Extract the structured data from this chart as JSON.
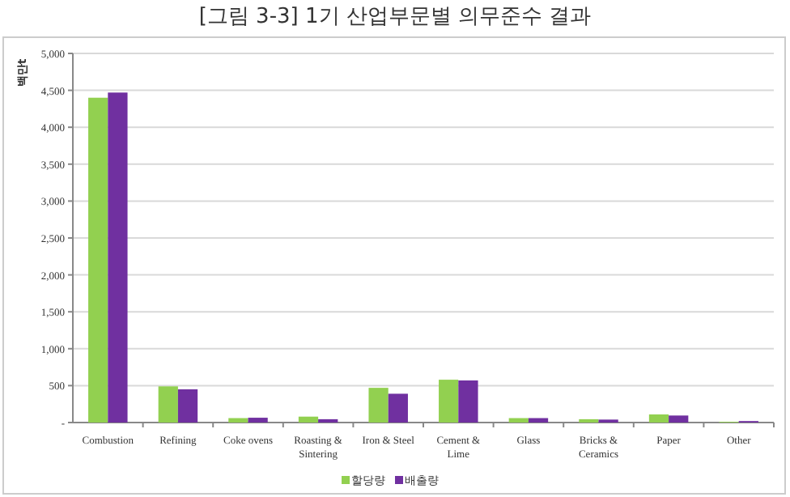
{
  "chart_data": {
    "type": "bar",
    "title": "[그림 3-3] 1기 산업부문별 의무준수 결과",
    "ylabel": "백만t",
    "categories": [
      "Combustion",
      "Refining",
      "Coke ovens",
      "Roasting & Sintering",
      "Iron & Steel",
      "Cement & Lime",
      "Glass",
      "Bricks & Ceramics",
      "Paper",
      "Other"
    ],
    "series": [
      {
        "name": "할당량",
        "color": "#92d050",
        "values": [
          4400,
          490,
          60,
          80,
          470,
          580,
          60,
          45,
          110,
          10
        ]
      },
      {
        "name": "배출량",
        "color": "#7030a0",
        "values": [
          4470,
          450,
          65,
          45,
          390,
          570,
          60,
          40,
          95,
          20
        ]
      }
    ],
    "ylim": [
      0,
      5000
    ],
    "yticks": [
      {
        "value": 0,
        "label": "-"
      },
      500,
      {
        "value": 1000,
        "label": "1,000"
      },
      {
        "value": 1500,
        "label": "1,500"
      },
      {
        "value": 2000,
        "label": "2,000"
      },
      {
        "value": 2500,
        "label": "2,500"
      },
      {
        "value": 3000,
        "label": "3,000"
      },
      {
        "value": 3500,
        "label": "3,500"
      },
      {
        "value": 4000,
        "label": "4,000"
      },
      {
        "value": 4500,
        "label": "4,500"
      },
      {
        "value": 5000,
        "label": "5,000"
      }
    ],
    "grid": "y",
    "legend": "bottom"
  }
}
